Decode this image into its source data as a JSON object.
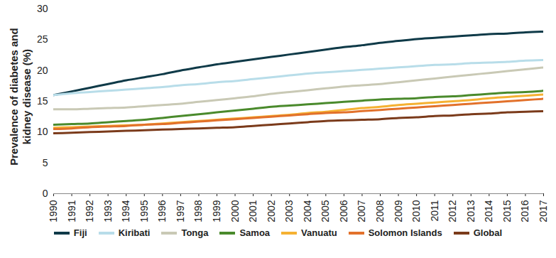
{
  "chart_data": {
    "type": "line",
    "y_label": "Prevalence of diabetes and kidney disease (%)",
    "x": [
      1990,
      1991,
      1992,
      1993,
      1994,
      1995,
      1996,
      1997,
      1998,
      1999,
      2000,
      2001,
      2002,
      2003,
      2004,
      2005,
      2006,
      2007,
      2008,
      2009,
      2010,
      2011,
      2012,
      2013,
      2014,
      2015,
      2016,
      2017
    ],
    "xlim": [
      1990,
      2017
    ],
    "xticks": [
      1990,
      1991,
      1992,
      1993,
      1994,
      1995,
      1996,
      1997,
      1998,
      1999,
      2000,
      2001,
      2002,
      2003,
      2004,
      2005,
      2006,
      2007,
      2008,
      2009,
      2010,
      2011,
      2012,
      2013,
      2014,
      2015,
      2016,
      2017
    ],
    "ylim": [
      0,
      30
    ],
    "yticks": [
      0,
      5,
      10,
      15,
      20,
      25,
      30
    ],
    "grid": false,
    "legend": "bottom",
    "series": [
      {
        "name": "Fiji",
        "color": "#0f3a48",
        "values": [
          16.0,
          16.6,
          17.2,
          17.8,
          18.4,
          18.9,
          19.4,
          20.0,
          20.5,
          21.0,
          21.4,
          21.8,
          22.2,
          22.6,
          23.0,
          23.4,
          23.8,
          24.1,
          24.5,
          24.8,
          25.1,
          25.3,
          25.5,
          25.7,
          25.9,
          26.0,
          26.2,
          26.3
        ]
      },
      {
        "name": "Kiribati",
        "color": "#b8dde9",
        "values": [
          16.0,
          16.3,
          16.5,
          16.7,
          16.9,
          17.1,
          17.3,
          17.6,
          17.8,
          18.1,
          18.3,
          18.6,
          18.9,
          19.2,
          19.5,
          19.7,
          19.9,
          20.1,
          20.3,
          20.5,
          20.7,
          20.9,
          21.0,
          21.2,
          21.3,
          21.4,
          21.6,
          21.7
        ]
      },
      {
        "name": "Tonga",
        "color": "#c9c9b5",
        "values": [
          13.7,
          13.7,
          13.8,
          13.9,
          14.0,
          14.2,
          14.4,
          14.6,
          14.9,
          15.2,
          15.5,
          15.8,
          16.2,
          16.5,
          16.8,
          17.1,
          17.4,
          17.6,
          17.8,
          18.1,
          18.4,
          18.7,
          19.0,
          19.3,
          19.6,
          19.9,
          20.2,
          20.5
        ]
      },
      {
        "name": "Samoa",
        "color": "#4a8a2c",
        "values": [
          11.2,
          11.3,
          11.4,
          11.6,
          11.8,
          12.0,
          12.3,
          12.6,
          12.9,
          13.2,
          13.5,
          13.8,
          14.1,
          14.3,
          14.5,
          14.7,
          14.9,
          15.1,
          15.3,
          15.4,
          15.5,
          15.7,
          15.8,
          16.0,
          16.2,
          16.4,
          16.5,
          16.7
        ]
      },
      {
        "name": "Vanuatu",
        "color": "#f5b132",
        "values": [
          10.7,
          10.8,
          10.9,
          11.0,
          11.1,
          11.2,
          11.4,
          11.6,
          11.8,
          12.0,
          12.2,
          12.4,
          12.6,
          12.8,
          13.1,
          13.3,
          13.6,
          13.9,
          14.1,
          14.4,
          14.6,
          14.8,
          15.0,
          15.2,
          15.5,
          15.7,
          15.9,
          16.1
        ]
      },
      {
        "name": "Solomon Islands",
        "color": "#e2712b",
        "values": [
          10.5,
          10.6,
          10.8,
          10.9,
          11.0,
          11.2,
          11.3,
          11.5,
          11.7,
          11.9,
          12.1,
          12.3,
          12.5,
          12.7,
          12.9,
          13.1,
          13.2,
          13.4,
          13.6,
          13.8,
          14.0,
          14.2,
          14.4,
          14.6,
          14.8,
          15.0,
          15.2,
          15.4
        ]
      },
      {
        "name": "Global",
        "color": "#7b3b1b",
        "values": [
          9.8,
          9.9,
          10.0,
          10.1,
          10.2,
          10.3,
          10.4,
          10.5,
          10.6,
          10.7,
          10.8,
          11.0,
          11.2,
          11.4,
          11.6,
          11.8,
          11.9,
          12.0,
          12.1,
          12.3,
          12.4,
          12.6,
          12.7,
          12.9,
          13.0,
          13.2,
          13.3,
          13.4
        ]
      }
    ]
  }
}
